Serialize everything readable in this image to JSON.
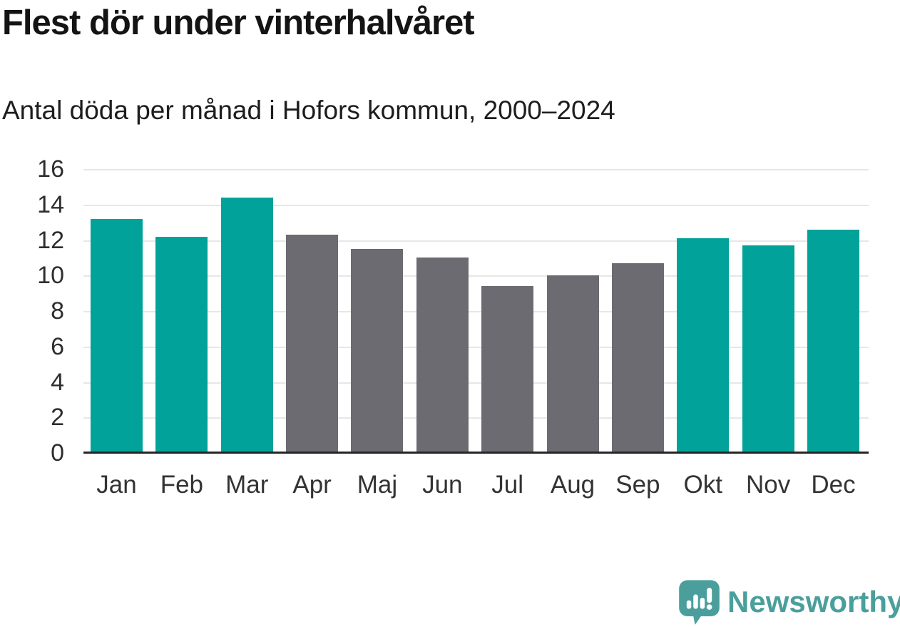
{
  "header": {
    "title": "Flest dör under vinterhalvåret",
    "subtitle": "Antal döda per månad i Hofors kommun, 2000–2024"
  },
  "colors": {
    "winter_bar": "#00a29a",
    "summer_bar": "#6c6b72",
    "gridline": "#e7e7e7",
    "axis_line": "#262626",
    "title_text": "#141414",
    "tick_text": "#2e2e2e",
    "logo_teal": "#4a9f9c"
  },
  "chart_data": {
    "type": "bar",
    "title": "Flest dör under vinterhalvåret",
    "subtitle": "Antal döda per månad i Hofors kommun, 2000–2024",
    "categories": [
      "Jan",
      "Feb",
      "Mar",
      "Apr",
      "Maj",
      "Jun",
      "Jul",
      "Aug",
      "Sep",
      "Okt",
      "Nov",
      "Dec"
    ],
    "values": [
      13.2,
      12.2,
      14.4,
      12.3,
      11.5,
      11.0,
      9.4,
      10.0,
      10.7,
      12.1,
      11.7,
      12.6
    ],
    "bar_color_keys": [
      "winter_bar",
      "winter_bar",
      "winter_bar",
      "summer_bar",
      "summer_bar",
      "summer_bar",
      "summer_bar",
      "summer_bar",
      "summer_bar",
      "winter_bar",
      "winter_bar",
      "winter_bar"
    ],
    "xlabel": "",
    "ylabel": "",
    "ylim": [
      0,
      16
    ],
    "ytick_step": 2,
    "ytick_labels": [
      "0",
      "2",
      "4",
      "6",
      "8",
      "10",
      "12",
      "14",
      "16"
    ],
    "grid": "horizontal",
    "legend": "none"
  },
  "footer": {
    "brand": "Newsworthy",
    "logo_icon": "speech-bubble-with-bar-chart-and-exclamation"
  }
}
